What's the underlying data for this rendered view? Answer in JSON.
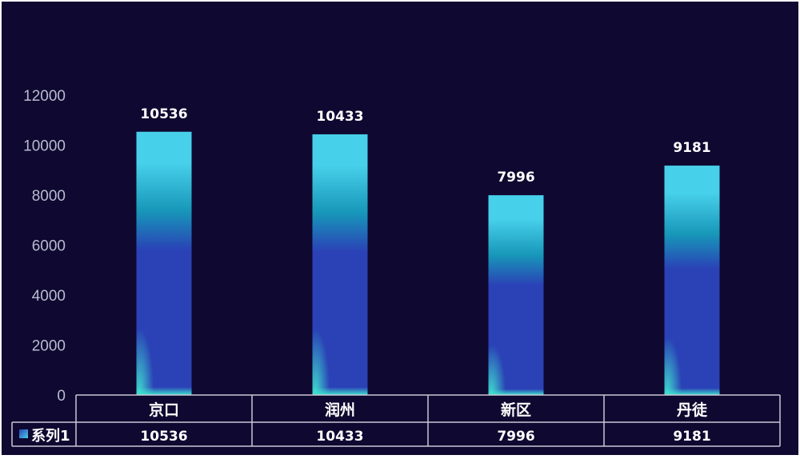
{
  "chart_data": {
    "type": "bar",
    "categories": [
      "京口",
      "润州",
      "新区",
      "丹徒"
    ],
    "series": [
      {
        "name": "系列1",
        "values": [
          10536,
          10433,
          7996,
          9181
        ]
      }
    ],
    "title": "",
    "xlabel": "",
    "ylabel": "",
    "ylim": [
      0,
      12000
    ],
    "yticks": [
      0,
      2000,
      4000,
      6000,
      8000,
      10000,
      12000
    ],
    "grid": false,
    "data_table": true,
    "legend": "in-table-left"
  },
  "colors": {
    "plot_background": "#0f0830",
    "page_background": "#ffffff",
    "bar_top": "#47d0ea",
    "bar_mid": "#1797b9",
    "bar_lower": "#2a42b6",
    "bar_glow": "#3fe1cf",
    "table_border": "#c8c8d6",
    "axis_text": "#b8bccf",
    "label_text": "#ffffff",
    "legend_swatch_top": "#2a42b6",
    "legend_swatch_bottom": "#47d0ea"
  }
}
